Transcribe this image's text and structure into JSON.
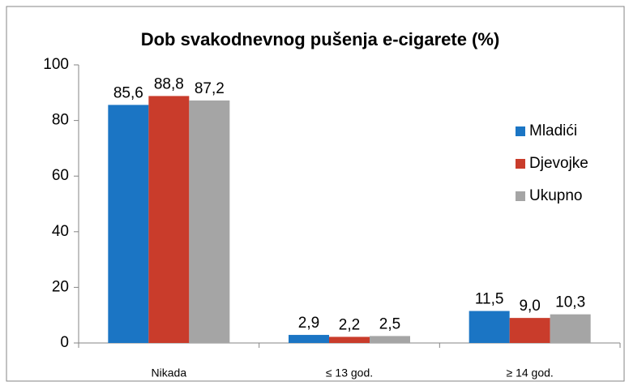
{
  "chart_data": {
    "type": "bar",
    "title": "Dob svakodnevnog pušenja e-cigarete (%)",
    "categories": [
      "Nikada",
      "≤ 13 god.",
      "≥ 14 god."
    ],
    "series": [
      {
        "name": "Mladići",
        "color": "#1B75C4",
        "values": [
          85.6,
          2.9,
          11.5
        ],
        "value_labels": [
          "85,6",
          "2,9",
          "11,5"
        ]
      },
      {
        "name": "Djevojke",
        "color": "#C93C2B",
        "values": [
          88.8,
          2.2,
          9.0
        ],
        "value_labels": [
          "88,8",
          "2,2",
          "9,0"
        ]
      },
      {
        "name": "Ukupno",
        "color": "#A5A5A5",
        "values": [
          87.2,
          2.5,
          10.3
        ],
        "value_labels": [
          "87,2",
          "2,5",
          "10,3"
        ]
      }
    ],
    "ylim": [
      0,
      100
    ],
    "yticks": [
      0,
      20,
      40,
      60,
      80,
      100
    ],
    "grid": false,
    "legend": "right"
  }
}
